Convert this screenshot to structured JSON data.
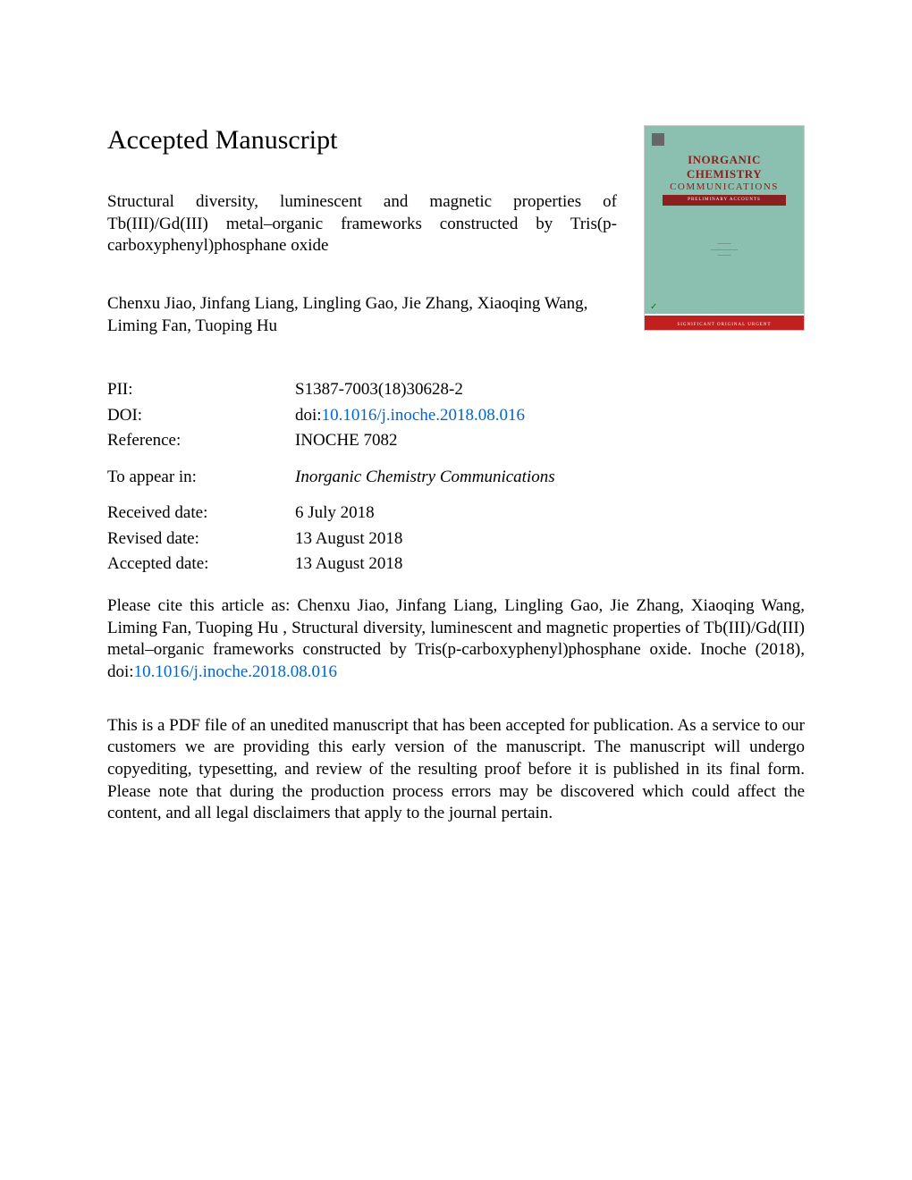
{
  "heading": "Accepted Manuscript",
  "article_title": "Structural diversity, luminescent and magnetic properties of Tb(III)/Gd(III) metal–organic frameworks constructed by Tris(p-carboxyphenyl)phosphane oxide",
  "authors": "Chenxu Jiao, Jinfang Liang, Lingling Gao, Jie Zhang, Xiaoqing Wang, Liming Fan, Tuoping Hu",
  "metadata": {
    "pii_label": "PII:",
    "pii_value": "S1387-7003(18)30628-2",
    "doi_label": "DOI:",
    "doi_prefix": "doi:",
    "doi_link": "10.1016/j.inoche.2018.08.016",
    "reference_label": "Reference:",
    "reference_value": "INOCHE 7082",
    "appear_label": "To appear in:",
    "appear_value": "Inorganic Chemistry Communications",
    "received_label": "Received date:",
    "received_value": "6 July 2018",
    "revised_label": "Revised date:",
    "revised_value": "13 August 2018",
    "accepted_label": "Accepted date:",
    "accepted_value": "13 August 2018"
  },
  "citation": {
    "prefix": "Please cite this article as: Chenxu Jiao, Jinfang Liang, Lingling Gao, Jie Zhang, Xiaoqing Wang, Liming Fan, Tuoping Hu , Structural diversity, luminescent and magnetic properties of Tb(III)/Gd(III) metal–organic frameworks constructed by Tris(p-carboxyphenyl)phosphane oxide. Inoche (2018), doi:",
    "link": "10.1016/j.inoche.2018.08.016"
  },
  "disclaimer": "This is a PDF file of an unedited manuscript that has been accepted for publication. As a service to our customers we are providing this early version of the manuscript. The manuscript will undergo copyediting, typesetting, and review of the resulting proof before it is published in its final form. Please note that during the production process errors may be discovered which could affect the content, and all legal disclaimers that apply to the journal pertain.",
  "cover": {
    "title1": "INORGANIC",
    "title2": "CHEMISTRY",
    "title3": "COMMUNICATIONS",
    "subtitle": "PRELIMINARY ACCOUNTS",
    "bottom_text": "SIGNIFICANT ORIGINAL URGENT",
    "bg_color": "#8bbfb0",
    "title_color": "#8b2020",
    "bar_color": "#c02020"
  }
}
